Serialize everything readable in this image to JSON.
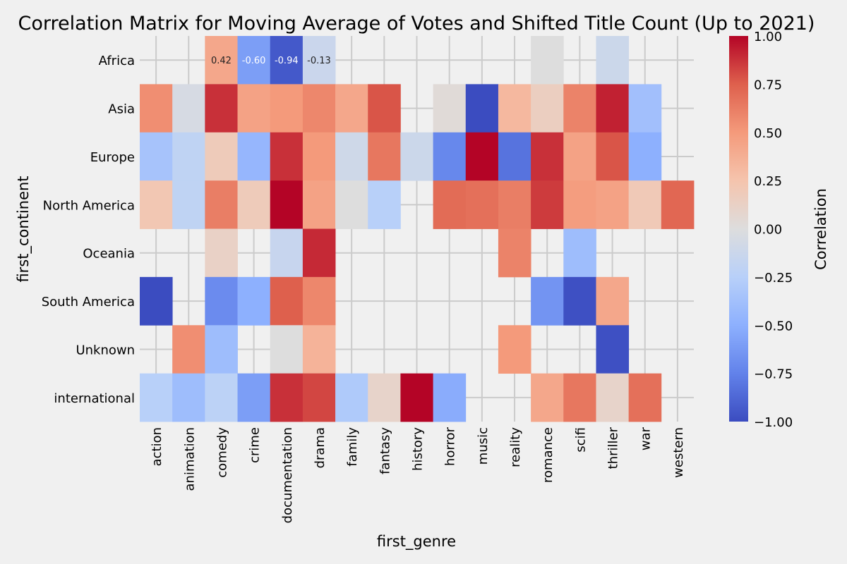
{
  "chart_data": {
    "type": "heatmap",
    "title": "Correlation Matrix for Moving Average of Votes and Shifted Title Count (Up to 2021)",
    "xlabel": "first_genre",
    "ylabel": "first_continent",
    "columns": [
      "action",
      "animation",
      "comedy",
      "crime",
      "documentation",
      "drama",
      "family",
      "fantasy",
      "history",
      "horror",
      "music",
      "reality",
      "romance",
      "scifi",
      "thriller",
      "war",
      "western"
    ],
    "rows": [
      "Africa",
      "Asia",
      "Europe",
      "North America",
      "Oceania",
      "South America",
      "Unknown",
      "international"
    ],
    "values": [
      [
        null,
        null,
        0.42,
        -0.6,
        -0.94,
        -0.13,
        null,
        null,
        null,
        null,
        null,
        null,
        0.0,
        null,
        -0.12,
        null,
        null
      ],
      [
        0.55,
        -0.05,
        0.88,
        0.45,
        0.5,
        0.58,
        0.42,
        0.78,
        null,
        0.03,
        -1.0,
        0.32,
        0.15,
        0.6,
        0.92,
        -0.38,
        null
      ],
      [
        -0.35,
        -0.2,
        0.18,
        -0.45,
        0.88,
        0.5,
        -0.1,
        0.65,
        -0.12,
        -0.72,
        1.0,
        -0.82,
        0.88,
        0.45,
        0.78,
        -0.5,
        null
      ],
      [
        0.22,
        -0.2,
        0.62,
        0.18,
        1.0,
        0.45,
        0.0,
        -0.25,
        null,
        0.7,
        0.68,
        0.62,
        0.85,
        0.48,
        0.45,
        0.2,
        0.72
      ],
      [
        null,
        null,
        0.12,
        null,
        -0.15,
        0.9,
        null,
        null,
        null,
        null,
        null,
        0.6,
        null,
        -0.4,
        null,
        null,
        null
      ],
      [
        -1.0,
        null,
        -0.7,
        -0.5,
        0.75,
        0.58,
        null,
        null,
        null,
        null,
        null,
        null,
        -0.65,
        -0.98,
        0.42,
        null,
        null
      ],
      [
        null,
        0.55,
        -0.4,
        null,
        0.0,
        0.35,
        null,
        null,
        null,
        null,
        null,
        0.5,
        null,
        null,
        -0.98,
        null,
        null
      ],
      [
        -0.25,
        -0.4,
        -0.22,
        -0.6,
        0.88,
        0.82,
        -0.3,
        0.1,
        1.0,
        -0.52,
        null,
        null,
        0.42,
        0.65,
        0.1,
        0.68,
        null
      ]
    ],
    "annotations": [
      {
        "row": "Africa",
        "column": "comedy",
        "text": "0.42"
      },
      {
        "row": "Africa",
        "column": "crime",
        "text": "-0.60"
      },
      {
        "row": "Africa",
        "column": "documentation",
        "text": "-0.94"
      },
      {
        "row": "Africa",
        "column": "drama",
        "text": "-0.13"
      }
    ],
    "colorbar": {
      "label": "Correlation",
      "range": [
        -1.0,
        1.0
      ],
      "ticks": [
        "1.00",
        "0.75",
        "0.50",
        "0.25",
        "0.00",
        "−0.25",
        "−0.50",
        "−0.75",
        "−1.00"
      ],
      "tick_values": [
        1.0,
        0.75,
        0.5,
        0.25,
        0.0,
        -0.25,
        -0.5,
        -0.75,
        -1.0
      ],
      "colormap": "coolwarm"
    },
    "grid": true
  }
}
